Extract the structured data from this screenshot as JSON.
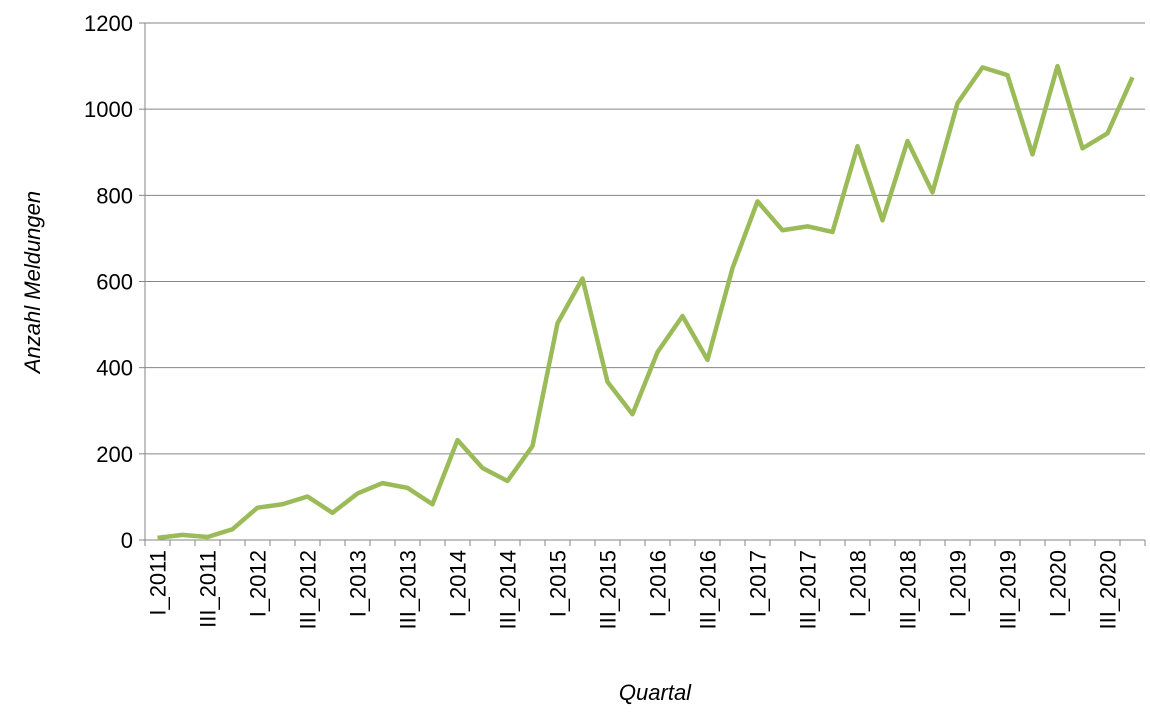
{
  "chart_data": {
    "type": "line",
    "x_label": "Quartal",
    "y_label": "Anzahl Meldungen",
    "categories": [
      "I_2011",
      null,
      "III_2011",
      null,
      "I_2012",
      null,
      "III_2012",
      null,
      "I_2013",
      null,
      "III_2013",
      null,
      "I_2014",
      null,
      "III_2014",
      null,
      "I_2015",
      null,
      "III_2015",
      null,
      "I_2016",
      null,
      "III_2016",
      null,
      "I_2017",
      null,
      "III_2017",
      null,
      "I_2018",
      null,
      "III_2018",
      null,
      "I_2019",
      null,
      "III_2019",
      null,
      "I_2020",
      null,
      "III_2020",
      null
    ],
    "values": [
      5,
      12,
      7,
      25,
      75,
      83,
      101,
      63,
      108,
      132,
      121,
      83,
      232,
      167,
      137,
      218,
      503,
      607,
      367,
      292,
      436,
      520,
      418,
      631,
      786,
      719,
      728,
      715,
      914,
      742,
      926,
      807,
      1014,
      1097,
      1079,
      895,
      1100,
      909,
      944,
      1074
    ],
    "color": "#9bbb59",
    "ylim": [
      0,
      1200
    ],
    "yticks": [
      0,
      200,
      400,
      600,
      800,
      1000,
      1200
    ],
    "grid": true
  }
}
